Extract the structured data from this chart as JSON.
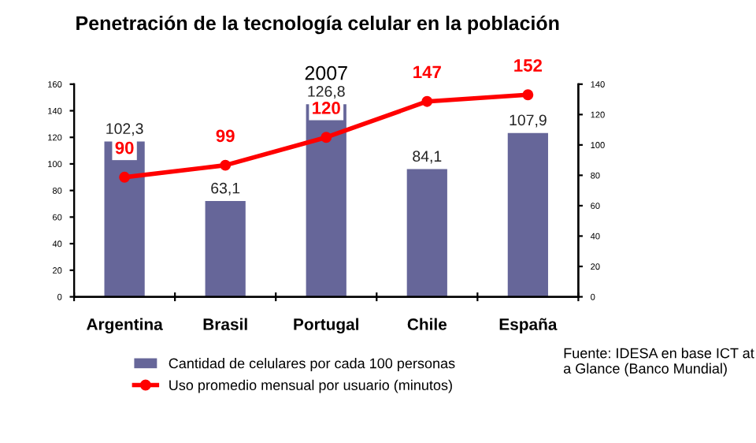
{
  "chart_data": {
    "type": "bar",
    "title": "Penetración de la tecnología celular en la población",
    "subtitle": "2007",
    "categories": [
      "Argentina",
      "Brasil",
      "Portugal",
      "Chile",
      "España"
    ],
    "series": [
      {
        "name": "Cantidad de celulares por cada 100 personas",
        "axis": "y2",
        "color": "#666699",
        "values": [
          102.3,
          63.1,
          126.8,
          84.1,
          107.9
        ],
        "value_labels": [
          "102,3",
          "63,1",
          "126,8",
          "84,1",
          "107,9"
        ]
      },
      {
        "name": "Uso promedio mensual por usuario (minutos)",
        "type": "line",
        "axis": "y",
        "color": "#ff0000",
        "marker": "circle",
        "values": [
          90,
          99,
          120,
          147,
          152
        ],
        "value_labels": [
          "90",
          "99",
          "120",
          "147",
          "152"
        ]
      }
    ],
    "ylim": [
      0,
      160
    ],
    "yticks": [
      0,
      20,
      40,
      60,
      80,
      100,
      120,
      140,
      160
    ],
    "y2lim": [
      0,
      140
    ],
    "y2ticks": [
      0,
      20,
      40,
      60,
      80,
      100,
      120,
      140
    ],
    "legend": "bottom",
    "grid": false,
    "annotations": [
      "Fuente: IDESA en base ICT at a Glance (Banco Mundial)"
    ]
  }
}
